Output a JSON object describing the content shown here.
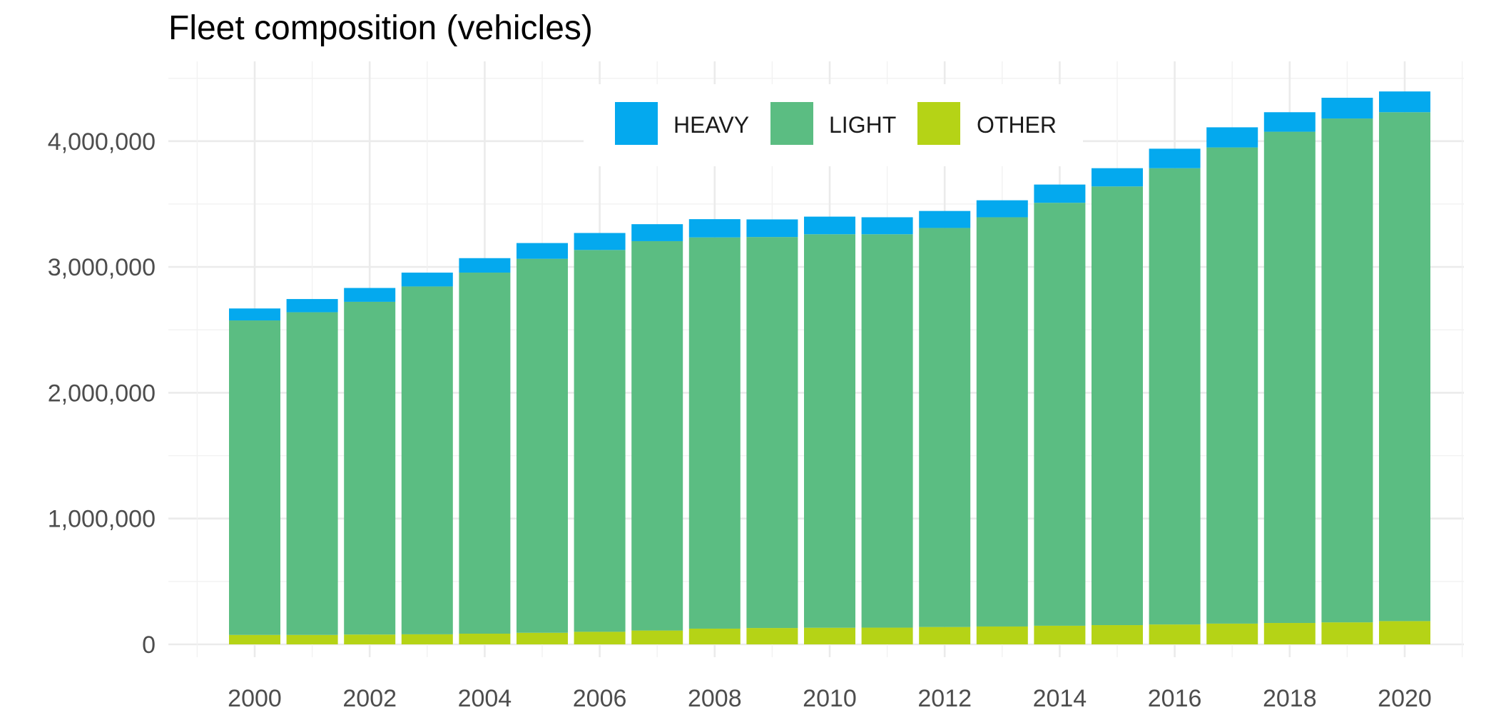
{
  "chart_data": {
    "type": "bar",
    "stacked": true,
    "title": "Fleet composition (vehicles)",
    "xlabel": "",
    "ylabel": "",
    "x": [
      2000,
      2001,
      2002,
      2003,
      2004,
      2005,
      2006,
      2007,
      2008,
      2009,
      2010,
      2011,
      2012,
      2013,
      2014,
      2015,
      2016,
      2017,
      2018,
      2019,
      2020
    ],
    "x_ticks": [
      "2000",
      "2002",
      "2004",
      "2006",
      "2008",
      "2010",
      "2012",
      "2014",
      "2016",
      "2018",
      "2020"
    ],
    "y_ticks": [
      "0",
      "1,000,000",
      "2,000,000",
      "3,000,000",
      "4,000,000"
    ],
    "ylim": [
      0,
      4500000
    ],
    "grid": true,
    "legend_position": "top-center",
    "series": [
      {
        "name": "OTHER",
        "color": "#b5d316",
        "values": [
          75000,
          75000,
          78000,
          80000,
          85000,
          92000,
          100000,
          110000,
          125000,
          130000,
          132000,
          133000,
          138000,
          142000,
          148000,
          153000,
          158000,
          165000,
          170000,
          175000,
          185000
        ]
      },
      {
        "name": "LIGHT",
        "color": "#5bbd82",
        "values": [
          2500000,
          2565000,
          2645000,
          2765000,
          2870000,
          2973000,
          3035000,
          3095000,
          3110000,
          3108000,
          3128000,
          3127000,
          3172000,
          3253000,
          3362000,
          3487000,
          3627000,
          3785000,
          3905000,
          4005000,
          4045000
        ]
      },
      {
        "name": "HEAVY",
        "color": "#04a9ee",
        "values": [
          95000,
          105000,
          110000,
          110000,
          115000,
          125000,
          135000,
          135000,
          145000,
          140000,
          140000,
          135000,
          135000,
          135000,
          145000,
          145000,
          155000,
          160000,
          155000,
          165000,
          165000
        ]
      }
    ],
    "legend_order": [
      "HEAVY",
      "LIGHT",
      "OTHER"
    ]
  }
}
